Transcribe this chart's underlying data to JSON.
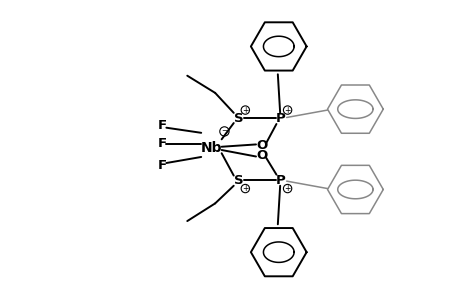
{
  "background": "#ffffff",
  "lc_b": "#000000",
  "lc_g": "#888888",
  "lw_b": 1.4,
  "lw_g": 1.1,
  "figsize": [
    4.6,
    3.0
  ],
  "dpi": 100,
  "nb_x": -0.3,
  "nb_y": 0.05,
  "xlim": [
    -4.0,
    4.2
  ],
  "ylim": [
    -3.2,
    3.2
  ]
}
